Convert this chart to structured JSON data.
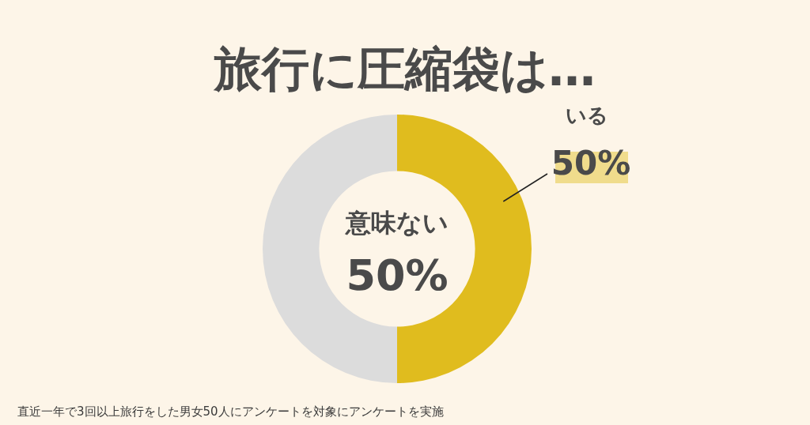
{
  "chart_data": {
    "type": "donut",
    "title": "旅行に圧縮袋は…",
    "categories": [
      "いる",
      "意味ない"
    ],
    "values": [
      50,
      50
    ],
    "colors": [
      "#e0bc1e",
      "#dcdcdc"
    ],
    "value_labels": [
      "50%",
      "50%"
    ],
    "legend": false,
    "annotations": [
      "直近一年で3回以上旅行をした男女50人にアンケートを対象にアンケートを実施"
    ]
  }
}
